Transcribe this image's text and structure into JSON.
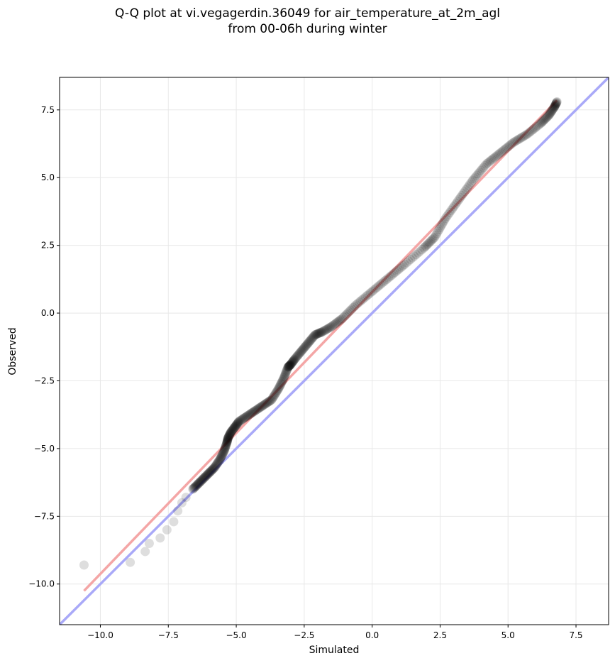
{
  "chart_data": {
    "type": "scatter",
    "title": "Q-Q plot at vi.vegagerdin.36049 for air_temperature_at_2m_agl",
    "subtitle": "from 00-06h during winter",
    "xlabel": "Simulated",
    "ylabel": "Observed",
    "xlim": [
      -11.5,
      8.7
    ],
    "ylim": [
      -11.5,
      8.7
    ],
    "x_ticks": [
      -10.0,
      -7.5,
      -5.0,
      -2.5,
      0.0,
      2.5,
      5.0,
      7.5
    ],
    "y_ticks": [
      -10.0,
      -7.5,
      -5.0,
      -2.5,
      0.0,
      2.5,
      5.0,
      7.5
    ],
    "x_tick_labels": [
      "−10.0",
      "−7.5",
      "−5.0",
      "−2.5",
      "0.0",
      "2.5",
      "5.0",
      "7.5"
    ],
    "y_tick_labels": [
      "−10.0",
      "−7.5",
      "−5.0",
      "−2.5",
      "0.0",
      "2.5",
      "5.0",
      "7.5"
    ],
    "grid": true,
    "reference_line": {
      "slope": 1,
      "intercept": 0,
      "color": "#a9a9f8"
    },
    "fit_line": {
      "x": [
        -10.6,
        6.8
      ],
      "y": [
        -10.25,
        7.85
      ],
      "color": "#f4a6a6"
    },
    "point_color": "#000000",
    "quantiles": {
      "x": [
        -10.6,
        -8.9,
        -8.35,
        -8.2,
        -7.8,
        -7.55,
        -7.3,
        -7.15,
        -7.0,
        -6.85,
        -6.6,
        -6.4,
        -6.2,
        -6.0,
        -5.8,
        -5.6,
        -5.45,
        -5.35,
        -5.3,
        -5.2,
        -5.05,
        -4.9,
        -4.6,
        -4.3,
        -4.0,
        -3.7,
        -3.45,
        -3.25,
        -3.1,
        -3.0,
        -2.85,
        -2.6,
        -2.35,
        -2.1,
        -1.85,
        -1.5,
        -1.1,
        -0.6,
        0.0,
        0.6,
        1.2,
        1.9,
        2.3,
        2.7,
        3.2,
        3.7,
        4.2,
        4.7,
        5.2,
        5.7,
        6.2,
        6.5,
        6.7,
        6.8
      ],
      "y": [
        -9.3,
        -9.2,
        -8.8,
        -8.5,
        -8.3,
        -8.0,
        -7.7,
        -7.3,
        -7.0,
        -6.8,
        -6.5,
        -6.3,
        -6.1,
        -5.9,
        -5.7,
        -5.4,
        -5.1,
        -4.8,
        -4.6,
        -4.4,
        -4.2,
        -4.0,
        -3.8,
        -3.6,
        -3.4,
        -3.2,
        -2.8,
        -2.4,
        -2.0,
        -1.9,
        -1.7,
        -1.4,
        -1.1,
        -0.8,
        -0.7,
        -0.5,
        -0.2,
        0.3,
        0.8,
        1.3,
        1.8,
        2.4,
        2.8,
        3.5,
        4.2,
        4.9,
        5.5,
        5.9,
        6.3,
        6.6,
        7.0,
        7.3,
        7.6,
        7.8
      ]
    }
  }
}
